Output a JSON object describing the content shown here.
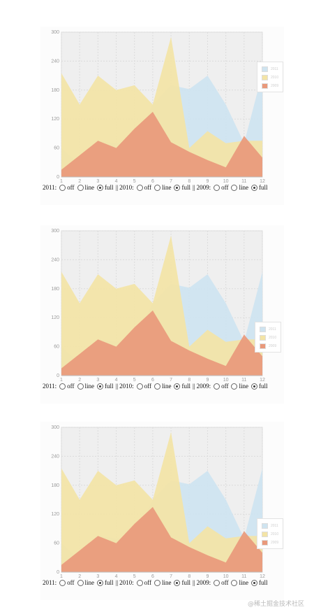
{
  "chart_data": [
    {
      "type": "area",
      "x": [
        1,
        2,
        3,
        4,
        5,
        6,
        7,
        8,
        9,
        10,
        11,
        12
      ],
      "series": [
        {
          "name": "2011",
          "color": "#cfe4f0",
          "values": [
            60,
            25,
            75,
            70,
            75,
            150,
            190,
            182,
            210,
            150,
            70,
            215
          ]
        },
        {
          "name": "2010",
          "color": "#f3e4a6",
          "values": [
            215,
            150,
            210,
            180,
            190,
            150,
            290,
            60,
            95,
            70,
            75,
            75
          ]
        },
        {
          "name": "2009",
          "color": "#e9997b",
          "values": [
            15,
            45,
            75,
            60,
            100,
            135,
            72,
            52,
            35,
            20,
            85,
            40
          ]
        }
      ],
      "ylim": [
        0,
        300
      ],
      "yticks": [
        "0",
        "60",
        "120",
        "180",
        "240",
        "300"
      ],
      "xticks": [
        "1",
        "2",
        "3",
        "4",
        "5",
        "6",
        "7",
        "8",
        "9",
        "10",
        "11",
        "12"
      ],
      "grid": true,
      "legend_position": "right"
    },
    {
      "type": "area",
      "x": [
        1,
        2,
        3,
        4,
        5,
        6,
        7,
        8,
        9,
        10,
        11,
        12
      ],
      "series": [
        {
          "name": "2011",
          "color": "#cfe4f0",
          "values": [
            60,
            25,
            75,
            70,
            75,
            150,
            190,
            182,
            210,
            150,
            70,
            215
          ]
        },
        {
          "name": "2010",
          "color": "#f3e4a6",
          "values": [
            215,
            150,
            210,
            180,
            190,
            150,
            290,
            60,
            95,
            70,
            75,
            75
          ]
        },
        {
          "name": "2009",
          "color": "#e9997b",
          "values": [
            15,
            45,
            75,
            60,
            100,
            135,
            72,
            52,
            35,
            20,
            85,
            40
          ]
        }
      ],
      "ylim": [
        0,
        300
      ],
      "yticks": [
        "0",
        "60",
        "120",
        "180",
        "240",
        "300"
      ],
      "xticks": [
        "1",
        "2",
        "3",
        "4",
        "5",
        "6",
        "7",
        "8",
        "9",
        "10",
        "11",
        "12"
      ],
      "grid": true,
      "legend_position": "right"
    },
    {
      "type": "area",
      "x": [
        1,
        2,
        3,
        4,
        5,
        6,
        7,
        8,
        9,
        10,
        11,
        12
      ],
      "series": [
        {
          "name": "2011",
          "color": "#cfe4f0",
          "values": [
            60,
            25,
            75,
            70,
            75,
            150,
            190,
            182,
            210,
            150,
            70,
            215
          ]
        },
        {
          "name": "2010",
          "color": "#f3e4a6",
          "values": [
            215,
            150,
            210,
            180,
            190,
            150,
            290,
            60,
            95,
            70,
            75,
            75
          ]
        },
        {
          "name": "2009",
          "color": "#e9997b",
          "values": [
            15,
            45,
            75,
            60,
            100,
            135,
            72,
            52,
            35,
            20,
            85,
            40
          ]
        }
      ],
      "ylim": [
        0,
        300
      ],
      "yticks": [
        "0",
        "60",
        "120",
        "180",
        "240",
        "300"
      ],
      "xticks": [
        "1",
        "2",
        "3",
        "4",
        "5",
        "6",
        "7",
        "8",
        "9",
        "10",
        "11",
        "12"
      ],
      "grid": true,
      "legend_position": "right"
    }
  ],
  "controls": {
    "groups": [
      {
        "label": "2011:",
        "options": [
          "off",
          "line",
          "full"
        ],
        "selected": "full"
      },
      {
        "label": "2010:",
        "options": [
          "off",
          "line",
          "full"
        ],
        "selected": "full"
      },
      {
        "label": "2009:",
        "options": [
          "off",
          "line",
          "full"
        ],
        "selected": "full"
      }
    ],
    "separator": "||"
  },
  "watermark": "@稀土掘金技术社区"
}
